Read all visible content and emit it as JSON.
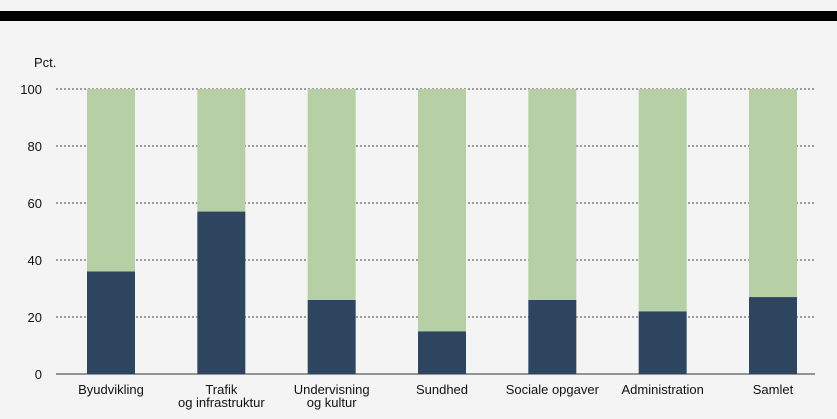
{
  "chart_data": {
    "type": "bar",
    "stacked": true,
    "ylabel": "Pct.",
    "ylim": [
      0,
      100
    ],
    "yticks": [
      0,
      20,
      40,
      60,
      80,
      100
    ],
    "grid": true,
    "categories": [
      [
        "Byudvikling"
      ],
      [
        "Trafik",
        "og infrastruktur"
      ],
      [
        "Undervisning",
        "og kultur"
      ],
      [
        "Sundhed"
      ],
      [
        "Sociale opgaver"
      ],
      [
        "Administration"
      ],
      [
        "Samlet"
      ]
    ],
    "series": [
      {
        "values": [
          36,
          57,
          26,
          15,
          26,
          22,
          27
        ],
        "color": "#2e4560"
      },
      {
        "values": [
          64,
          43,
          74,
          85,
          74,
          78,
          73
        ],
        "color": "#b6cfa4"
      }
    ]
  }
}
